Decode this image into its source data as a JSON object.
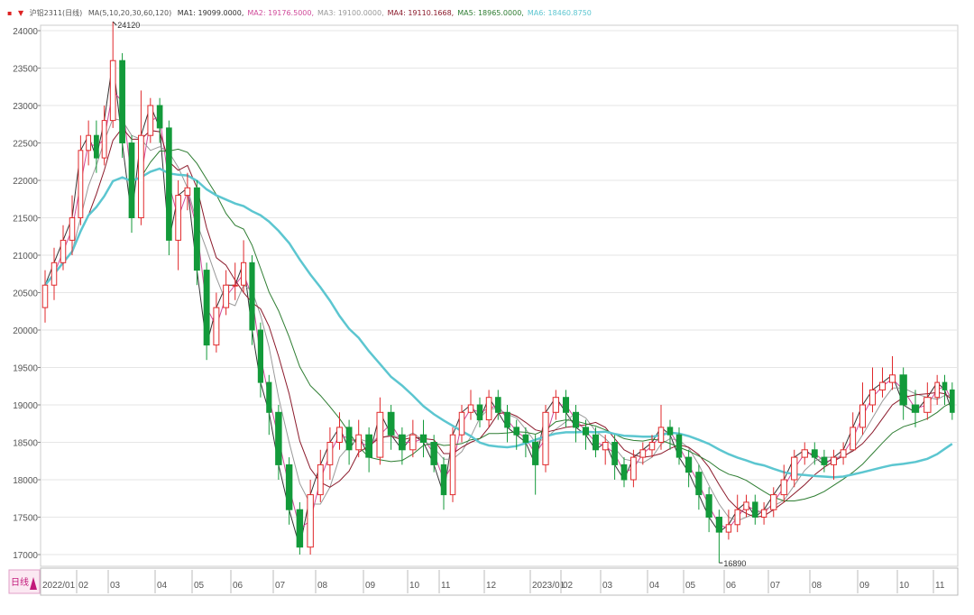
{
  "header": {
    "marker_left": "▪",
    "marker_right": "▼",
    "title": "沪铝2311(日线)",
    "ma_params": "MA(5,10,20,30,60,120)",
    "ma_values": [
      {
        "label": "MA1: 19099.0000,",
        "color": "#333333"
      },
      {
        "label": "MA2: 19176.5000,",
        "color": "#d04a9a"
      },
      {
        "label": "MA3: 19100.0000,",
        "color": "#999999"
      },
      {
        "label": "MA4: 19110.1668,",
        "color": "#8b1a2b"
      },
      {
        "label": "MA5: 18965.0000,",
        "color": "#2e7d32"
      },
      {
        "label": "MA6: 18460.8750",
        "color": "#5cc6d0"
      }
    ]
  },
  "period_tab": {
    "label": "日线",
    "icon": "triangle-up-icon",
    "color": "#c2187a"
  },
  "chart_data": {
    "type": "candlestick",
    "ylim": [
      16900,
      24100
    ],
    "yticks": [
      24000,
      23500,
      23000,
      22500,
      22000,
      21500,
      21000,
      20500,
      20000,
      19500,
      19000,
      18500,
      18000,
      17500,
      17000
    ],
    "grid": true,
    "up_color": "#e0282b",
    "down_color": "#139a3a",
    "moving_averages": [
      {
        "name": "MA1",
        "period": 5,
        "color": "#333333"
      },
      {
        "name": "MA2",
        "period": 10,
        "color": "#d04a9a"
      },
      {
        "name": "MA3",
        "period": 20,
        "color": "#999999"
      },
      {
        "name": "MA4",
        "period": 30,
        "color": "#8b1a2b"
      },
      {
        "name": "MA5",
        "period": 60,
        "color": "#2e7d32"
      },
      {
        "name": "MA6",
        "period": 120,
        "color": "#5cc6d0"
      }
    ],
    "annotations": [
      {
        "label": "24120",
        "value": 24120
      },
      {
        "label": "16890",
        "value": 16890
      }
    ],
    "months": [
      {
        "label": "2022/01",
        "candles": [
          [
            20300,
            20800,
            20100,
            20600
          ],
          [
            20600,
            21100,
            20400,
            20900
          ],
          [
            20900,
            21400,
            20800,
            21200
          ],
          [
            21200,
            21800,
            21000,
            21500
          ]
        ]
      },
      {
        "label": "02",
        "candles": [
          [
            21500,
            22600,
            21400,
            22400
          ],
          [
            22400,
            22800,
            22200,
            22600
          ],
          [
            22600,
            22800,
            22100,
            22300
          ],
          [
            22300,
            23000,
            22200,
            22800
          ]
        ]
      },
      {
        "label": "03",
        "candles": [
          [
            22800,
            24120,
            22700,
            23600
          ],
          [
            23600,
            23700,
            22300,
            22500
          ],
          [
            22500,
            22600,
            21300,
            21500
          ],
          [
            21500,
            23200,
            21400,
            22600
          ],
          [
            22600,
            23100,
            22500,
            23000
          ]
        ]
      },
      {
        "label": "04",
        "candles": [
          [
            23000,
            23100,
            22500,
            22700
          ],
          [
            22700,
            22800,
            21000,
            21200
          ],
          [
            21200,
            22000,
            20800,
            21800
          ],
          [
            21800,
            22100,
            21600,
            21900
          ]
        ]
      },
      {
        "label": "05",
        "candles": [
          [
            21900,
            22000,
            20600,
            20800
          ],
          [
            20800,
            20900,
            19600,
            19800
          ],
          [
            19800,
            20500,
            19700,
            20300
          ],
          [
            20300,
            20800,
            20200,
            20600
          ]
        ]
      },
      {
        "label": "06",
        "candles": [
          [
            20600,
            20900,
            20400,
            20600
          ],
          [
            20600,
            21200,
            20500,
            20900
          ],
          [
            20900,
            21000,
            19800,
            20000
          ],
          [
            20000,
            20100,
            19100,
            19300
          ],
          [
            19300,
            19400,
            18600,
            18900
          ]
        ]
      },
      {
        "label": "07",
        "candles": [
          [
            18900,
            19000,
            18000,
            18200
          ],
          [
            18200,
            18300,
            17400,
            17600
          ],
          [
            17600,
            17700,
            17000,
            17100
          ],
          [
            17100,
            18000,
            17000,
            17800
          ]
        ]
      },
      {
        "label": "08",
        "candles": [
          [
            17800,
            18400,
            17700,
            18200
          ],
          [
            18200,
            18700,
            18000,
            18500
          ],
          [
            18500,
            18900,
            18400,
            18700
          ],
          [
            18700,
            18800,
            18200,
            18400
          ],
          [
            18400,
            18800,
            18300,
            18600
          ]
        ]
      },
      {
        "label": "09",
        "candles": [
          [
            18600,
            18700,
            18100,
            18300
          ],
          [
            18300,
            19100,
            18200,
            18900
          ],
          [
            18900,
            19000,
            18400,
            18600
          ],
          [
            18600,
            18700,
            18200,
            18400
          ]
        ]
      },
      {
        "label": "10",
        "candles": [
          [
            18400,
            18800,
            18300,
            18600
          ],
          [
            18600,
            18800,
            18300,
            18500
          ],
          [
            18500,
            18600,
            18100,
            18200
          ]
        ]
      },
      {
        "label": "11",
        "candles": [
          [
            18200,
            18300,
            17600,
            17800
          ],
          [
            17800,
            18700,
            17700,
            18600
          ],
          [
            18600,
            19000,
            18500,
            18900
          ],
          [
            18900,
            19200,
            18800,
            19000
          ],
          [
            19000,
            19100,
            18700,
            18800
          ]
        ]
      },
      {
        "label": "12",
        "candles": [
          [
            18800,
            19200,
            18700,
            19100
          ],
          [
            19100,
            19200,
            18800,
            18900
          ],
          [
            18900,
            19000,
            18500,
            18700
          ],
          [
            18700,
            18800,
            18400,
            18600
          ],
          [
            18600,
            18700,
            18300,
            18500
          ]
        ]
      },
      {
        "label": "2023/01",
        "candles": [
          [
            18500,
            18600,
            17800,
            18200
          ],
          [
            18200,
            19000,
            18100,
            18900
          ],
          [
            18900,
            19200,
            18800,
            19100
          ]
        ]
      },
      {
        "label": "02",
        "candles": [
          [
            19100,
            19200,
            18700,
            18900
          ],
          [
            18900,
            19000,
            18500,
            18700
          ],
          [
            18700,
            18800,
            18400,
            18600
          ],
          [
            18600,
            18700,
            18300,
            18400
          ]
        ]
      },
      {
        "label": "03",
        "candles": [
          [
            18400,
            18600,
            18200,
            18500
          ],
          [
            18500,
            18600,
            18000,
            18200
          ],
          [
            18200,
            18300,
            17900,
            18000
          ],
          [
            18000,
            18400,
            17900,
            18300
          ],
          [
            18300,
            18500,
            18200,
            18400
          ]
        ]
      },
      {
        "label": "04",
        "candles": [
          [
            18400,
            18600,
            18300,
            18500
          ],
          [
            18500,
            19000,
            18400,
            18700
          ],
          [
            18700,
            18800,
            18400,
            18600
          ],
          [
            18600,
            18700,
            18200,
            18300
          ]
        ]
      },
      {
        "label": "05",
        "candles": [
          [
            18300,
            18400,
            17900,
            18100
          ],
          [
            18100,
            18200,
            17600,
            17800
          ],
          [
            17800,
            17900,
            17300,
            17500
          ],
          [
            17500,
            17600,
            16890,
            17300
          ]
        ]
      },
      {
        "label": "06",
        "candles": [
          [
            17300,
            17600,
            17200,
            17400
          ],
          [
            17400,
            17800,
            17300,
            17600
          ],
          [
            17600,
            17800,
            17500,
            17700
          ],
          [
            17700,
            17800,
            17400,
            17500
          ],
          [
            17500,
            17700,
            17400,
            17600
          ]
        ]
      },
      {
        "label": "07",
        "candles": [
          [
            17600,
            17900,
            17500,
            17800
          ],
          [
            17800,
            18200,
            17700,
            18000
          ],
          [
            18000,
            18400,
            17900,
            18300
          ],
          [
            18300,
            18500,
            18200,
            18400
          ]
        ]
      },
      {
        "label": "08",
        "candles": [
          [
            18400,
            18500,
            18200,
            18300
          ],
          [
            18300,
            18400,
            18100,
            18200
          ],
          [
            18200,
            18400,
            18000,
            18300
          ],
          [
            18300,
            18500,
            18200,
            18400
          ],
          [
            18400,
            18900,
            18400,
            18700
          ]
        ]
      },
      {
        "label": "09",
        "candles": [
          [
            18700,
            19300,
            18600,
            19000
          ],
          [
            19000,
            19500,
            18900,
            19200
          ],
          [
            19200,
            19500,
            19100,
            19300
          ],
          [
            19300,
            19650,
            19200,
            19400
          ]
        ]
      },
      {
        "label": "10",
        "candles": [
          [
            19400,
            19500,
            18800,
            19000
          ],
          [
            19000,
            19200,
            18700,
            18900
          ],
          [
            18900,
            19300,
            18800,
            19100
          ]
        ]
      },
      {
        "label": "11",
        "candles": [
          [
            19100,
            19400,
            19000,
            19300
          ],
          [
            19300,
            19400,
            19000,
            19200
          ],
          [
            19200,
            19300,
            18800,
            18900
          ]
        ]
      }
    ]
  }
}
